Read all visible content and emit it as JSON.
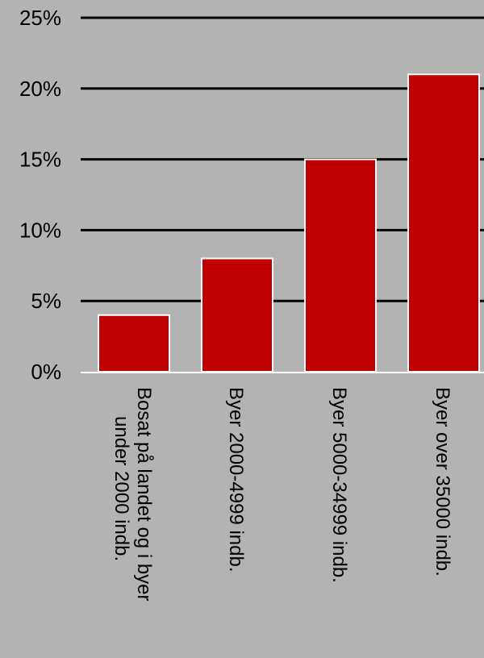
{
  "chart_data": {
    "type": "bar",
    "title": "",
    "xlabel": "",
    "ylabel": "",
    "categories": [
      [
        "Bosat på landet og i byer",
        "under 2000 indb."
      ],
      [
        "Byer 2000-4999 indb."
      ],
      [
        "Byer 5000-34999 indb."
      ],
      [
        "Byer over 35000 indb."
      ]
    ],
    "values": [
      4,
      8,
      15,
      21
    ],
    "ylim": [
      0,
      25
    ],
    "yticks": [
      0,
      5,
      10,
      15,
      20,
      25
    ],
    "ytick_labels": [
      "0%",
      "5%",
      "10%",
      "15%",
      "20%",
      "25%"
    ],
    "grid": true,
    "legend": "none",
    "colors": {
      "background": "#b3b3b3",
      "bar": "#c00000",
      "bar_edge": "#ffffff",
      "grid": "#000000",
      "baseline": "#ffffff",
      "text": "#000000"
    }
  }
}
